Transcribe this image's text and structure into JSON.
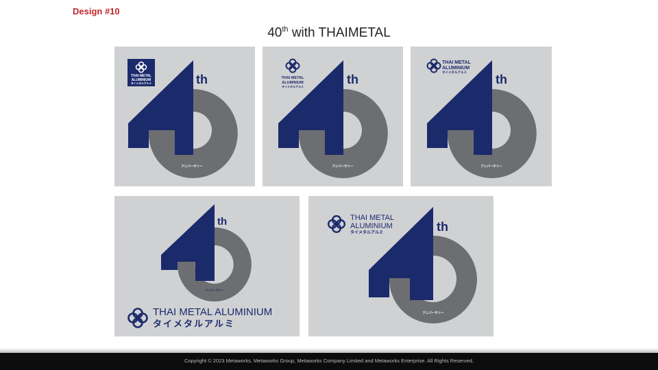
{
  "header": {
    "design_label": "Design #10",
    "title_number": "40",
    "title_sup": "th",
    "title_rest": " with THAIMETAL"
  },
  "brand": {
    "line1": "THAI METAL",
    "line2": "ALUMINIUM",
    "full_name": "THAI METAL ALUMINIUM",
    "katakana": "タイメタルアルミ",
    "small_line1": "THAI METAL",
    "small_line2": "ALUMINIUM"
  },
  "emblem": {
    "ordinal_suffix": "th",
    "anniversary_text": "アニバーサリー"
  },
  "colors": {
    "navy": "#1b2a6b",
    "gray_ring": "#6d6e71",
    "card_bg": "#d0d1d3",
    "accent_red": "#c1272d"
  },
  "footer": {
    "copyright": "Copyright © 2023 Metaworks, Metaworks Group, Metaworks Company Limited and Metaworks Enterprise. All Rights Reserved."
  }
}
